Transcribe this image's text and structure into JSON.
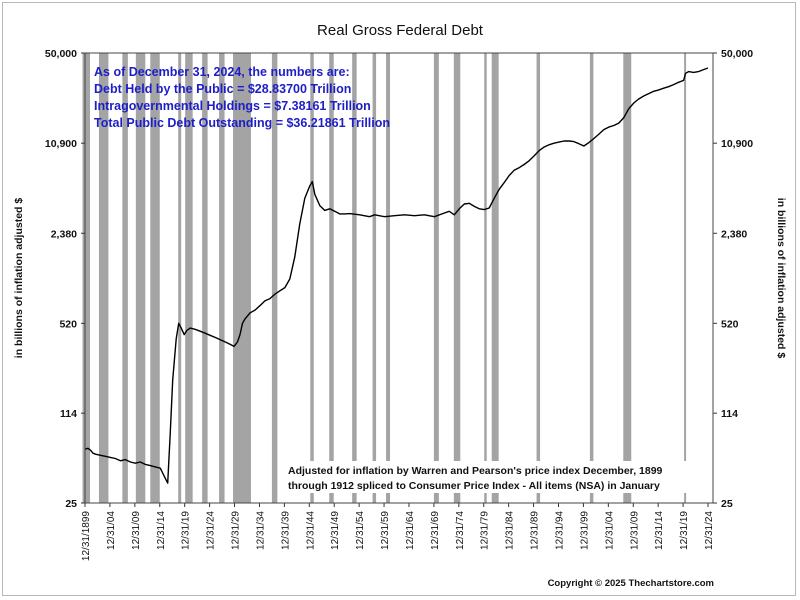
{
  "chart_data": {
    "type": "line",
    "title": "Real Gross Federal Debt",
    "ylabel_left": "in billions of inflation adjusted $",
    "ylabel_right": "in billions of inflation adjusted $",
    "y_scale": "log",
    "ylim": [
      25,
      50000
    ],
    "y_ticks": [
      "50,000",
      "10,900",
      "2,380",
      "520",
      "114",
      "25"
    ],
    "xlim": [
      "1899-12-31",
      "2025-12-31"
    ],
    "x_ticks": [
      "12/31/1899",
      "12/31/04",
      "12/31/09",
      "12/31/14",
      "12/31/19",
      "12/31/24",
      "12/31/29",
      "12/31/34",
      "12/31/39",
      "12/31/44",
      "12/31/49",
      "12/31/54",
      "12/31/59",
      "12/31/64",
      "12/31/69",
      "12/31/74",
      "12/31/79",
      "12/31/84",
      "12/31/89",
      "12/31/94",
      "12/31/99",
      "12/31/04",
      "12/31/09",
      "12/31/14",
      "12/31/19",
      "12/31/24"
    ],
    "annotation_lines": [
      "As of December 31, 2024, the numbers are:",
      "Debt Held by the Public = $28.83700 Trillion",
      "Intragovernmental Holdings = $7.38161 Trillion",
      "Total Public Debt Outstanding = $36.21861 Trillion"
    ],
    "note_lines": [
      "Adjusted for inflation by Warren and Pearson's price index December, 1899",
      "through 1912 spliced to Consumer Price Index - All items (NSA) in January"
    ],
    "recession_shading": [
      [
        1899.4,
        1900.9
      ],
      [
        1902.7,
        1904.6
      ],
      [
        1907.4,
        1908.5
      ],
      [
        1910.1,
        1912.0
      ],
      [
        1913.0,
        1914.9
      ],
      [
        1918.6,
        1919.2
      ],
      [
        1920.0,
        1921.5
      ],
      [
        1923.4,
        1924.5
      ],
      [
        1926.8,
        1927.9
      ],
      [
        1929.6,
        1933.2
      ],
      [
        1937.4,
        1938.5
      ],
      [
        1945.1,
        1945.8
      ],
      [
        1948.9,
        1949.8
      ],
      [
        1953.5,
        1954.4
      ],
      [
        1957.6,
        1958.3
      ],
      [
        1960.3,
        1961.1
      ],
      [
        1969.9,
        1970.9
      ],
      [
        1973.9,
        1975.2
      ],
      [
        1980.0,
        1980.5
      ],
      [
        1981.5,
        1982.9
      ],
      [
        1990.5,
        1991.2
      ],
      [
        2001.2,
        2001.9
      ],
      [
        2007.9,
        2009.5
      ],
      [
        2020.1,
        2020.4
      ]
    ],
    "series": [
      {
        "values": [
          [
            1899.9,
            62
          ],
          [
            1900.5,
            63
          ],
          [
            1901.0,
            61
          ],
          [
            1901.5,
            58
          ],
          [
            1902.0,
            57
          ],
          [
            1903.0,
            56
          ],
          [
            1904.0,
            55
          ],
          [
            1905.0,
            54
          ],
          [
            1906.0,
            53
          ],
          [
            1907.0,
            51
          ],
          [
            1908.0,
            52
          ],
          [
            1909.0,
            50
          ],
          [
            1910.0,
            49
          ],
          [
            1911.0,
            50
          ],
          [
            1912.0,
            48
          ],
          [
            1913.0,
            47
          ],
          [
            1914.0,
            46
          ],
          [
            1915.0,
            45
          ],
          [
            1916.0,
            38
          ],
          [
            1916.5,
            35
          ],
          [
            1917.0,
            80
          ],
          [
            1917.5,
            200
          ],
          [
            1918.2,
            400
          ],
          [
            1918.7,
            520
          ],
          [
            1919.2,
            480
          ],
          [
            1919.8,
            430
          ],
          [
            1920.3,
            460
          ],
          [
            1921.0,
            480
          ],
          [
            1922.0,
            470
          ],
          [
            1923.0,
            455
          ],
          [
            1924.0,
            440
          ],
          [
            1925.0,
            425
          ],
          [
            1926.0,
            410
          ],
          [
            1927.0,
            395
          ],
          [
            1928.0,
            380
          ],
          [
            1929.0,
            365
          ],
          [
            1929.8,
            352
          ],
          [
            1930.5,
            380
          ],
          [
            1931.0,
            430
          ],
          [
            1931.5,
            520
          ],
          [
            1932.0,
            560
          ],
          [
            1933.0,
            620
          ],
          [
            1934.0,
            650
          ],
          [
            1935.0,
            700
          ],
          [
            1936.0,
            760
          ],
          [
            1937.0,
            790
          ],
          [
            1938.0,
            850
          ],
          [
            1939.0,
            900
          ],
          [
            1940.0,
            950
          ],
          [
            1941.0,
            1100
          ],
          [
            1942.0,
            1600
          ],
          [
            1943.0,
            2800
          ],
          [
            1944.0,
            4300
          ],
          [
            1945.0,
            5300
          ],
          [
            1945.5,
            5700
          ],
          [
            1946.0,
            4600
          ],
          [
            1947.0,
            3800
          ],
          [
            1948.0,
            3500
          ],
          [
            1949.0,
            3600
          ],
          [
            1950.0,
            3450
          ],
          [
            1951.0,
            3300
          ],
          [
            1952.0,
            3300
          ],
          [
            1953.0,
            3320
          ],
          [
            1955.0,
            3250
          ],
          [
            1957.0,
            3150
          ],
          [
            1958.0,
            3250
          ],
          [
            1960.0,
            3150
          ],
          [
            1962.0,
            3200
          ],
          [
            1964.0,
            3250
          ],
          [
            1966.0,
            3200
          ],
          [
            1968.0,
            3250
          ],
          [
            1970.0,
            3150
          ],
          [
            1972.0,
            3350
          ],
          [
            1973.0,
            3450
          ],
          [
            1974.0,
            3250
          ],
          [
            1975.0,
            3600
          ],
          [
            1976.0,
            3900
          ],
          [
            1977.0,
            3950
          ],
          [
            1978.0,
            3750
          ],
          [
            1979.0,
            3600
          ],
          [
            1980.0,
            3550
          ],
          [
            1981.0,
            3650
          ],
          [
            1982.0,
            4300
          ],
          [
            1983.0,
            5000
          ],
          [
            1984.0,
            5600
          ],
          [
            1985.0,
            6300
          ],
          [
            1986.0,
            6900
          ],
          [
            1987.0,
            7200
          ],
          [
            1988.0,
            7600
          ],
          [
            1989.0,
            8100
          ],
          [
            1990.0,
            8800
          ],
          [
            1991.0,
            9600
          ],
          [
            1992.0,
            10200
          ],
          [
            1993.0,
            10600
          ],
          [
            1994.0,
            10900
          ],
          [
            1995.0,
            11100
          ],
          [
            1996.0,
            11300
          ],
          [
            1997.0,
            11300
          ],
          [
            1998.0,
            11200
          ],
          [
            1999.0,
            10800
          ],
          [
            2000.0,
            10400
          ],
          [
            2001.0,
            11000
          ],
          [
            2002.0,
            11800
          ],
          [
            2003.0,
            12700
          ],
          [
            2004.0,
            13700
          ],
          [
            2005.0,
            14300
          ],
          [
            2006.0,
            14700
          ],
          [
            2007.0,
            15300
          ],
          [
            2008.0,
            16800
          ],
          [
            2009.0,
            19500
          ],
          [
            2010.0,
            21500
          ],
          [
            2011.0,
            23000
          ],
          [
            2012.0,
            24200
          ],
          [
            2013.0,
            25200
          ],
          [
            2014.0,
            26200
          ],
          [
            2015.0,
            26800
          ],
          [
            2016.0,
            27600
          ],
          [
            2017.0,
            28300
          ],
          [
            2018.0,
            29300
          ],
          [
            2019.0,
            30500
          ],
          [
            2020.0,
            31500
          ],
          [
            2020.4,
            35500
          ],
          [
            2021.0,
            36500
          ],
          [
            2022.0,
            36000
          ],
          [
            2023.0,
            36500
          ],
          [
            2024.0,
            37800
          ],
          [
            2024.9,
            38800
          ]
        ]
      }
    ]
  },
  "copyright": "Copyright © 2025 Thechartstore.com",
  "colors": {
    "background": "#ffffff",
    "recession": "#a4a4a4",
    "line": "#000000",
    "annotation": "#1e1ec8"
  }
}
